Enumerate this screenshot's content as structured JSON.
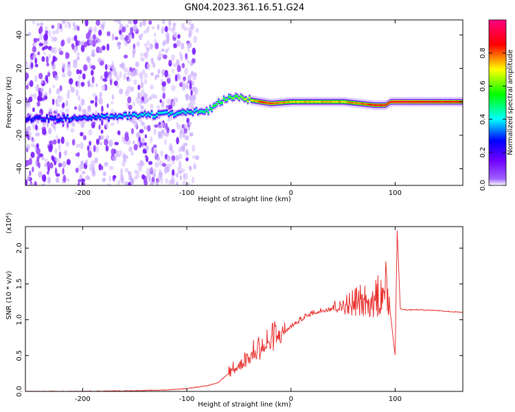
{
  "title": "GN04.2023.361.16.51.G24",
  "chart_data": [
    {
      "type": "heatmap",
      "xlabel": "Height of straight line (km)",
      "ylabel": "Frequency (Hz)",
      "xlim": [
        -255,
        165
      ],
      "ylim": [
        -50,
        49
      ],
      "xticks": [
        -200,
        -100,
        0,
        100
      ],
      "yticks": [
        -40,
        -20,
        0,
        20,
        40
      ],
      "colorbar": {
        "label": "Normalized spectral amplitude",
        "range": [
          0,
          1
        ],
        "ticks": [
          0.0,
          0.2,
          0.4,
          0.6,
          0.8
        ],
        "tick_labels": [
          "0.0",
          "0.2",
          "0.4",
          "0.6",
          "0.8"
        ],
        "colors": [
          "#ffffff",
          "#8000ff",
          "#0000ff",
          "#00ffff",
          "#00ff00",
          "#ffff00",
          "#ff0000",
          "#ff0080"
        ]
      },
      "ridge": {
        "x": [
          -255,
          -200,
          -170,
          -140,
          -110,
          -95,
          -80,
          -70,
          -60,
          -50,
          -40,
          -30,
          -20,
          0,
          50,
          80,
          90,
          95,
          165
        ],
        "y": [
          -10,
          -10,
          -9,
          -8,
          -7,
          -6,
          -5,
          0,
          2,
          3,
          1,
          0,
          -1,
          0,
          0,
          -2,
          -2,
          0,
          0
        ],
        "amplitude": [
          0.3,
          0.35,
          0.4,
          0.45,
          0.45,
          0.45,
          0.55,
          0.6,
          0.6,
          0.65,
          0.7,
          0.85,
          0.85,
          0.75,
          0.75,
          0.85,
          0.85,
          0.9,
          0.85
        ]
      },
      "noise_region_x": [
        -255,
        -90
      ]
    },
    {
      "type": "line",
      "xlabel": "Height of straight line (km)",
      "ylabel": "SNR (10 * v/v)",
      "scale_label": "(x10⁴)",
      "xlim": [
        -255,
        165
      ],
      "ylim": [
        0,
        2.3
      ],
      "xticks": [
        -200,
        -100,
        0,
        100
      ],
      "yticks": [
        0.0,
        0.5,
        1.0,
        1.5,
        2.0
      ],
      "ytick_labels": [
        "0.0",
        "0.5",
        "1.0",
        "1.5",
        "2.0"
      ],
      "series": [
        {
          "color": "#e8302e",
          "x": [
            -255,
            -200,
            -150,
            -120,
            -100,
            -90,
            -80,
            -70,
            -60,
            -50,
            -40,
            -30,
            -20,
            -10,
            0,
            10,
            20,
            30,
            40,
            50,
            60,
            70,
            80,
            85,
            90,
            95,
            100,
            102,
            105,
            110,
            120,
            140,
            165
          ],
          "y": [
            0.0,
            0.0,
            0.01,
            0.02,
            0.04,
            0.06,
            0.08,
            0.12,
            0.25,
            0.35,
            0.45,
            0.55,
            0.65,
            0.78,
            0.9,
            1.0,
            1.08,
            1.12,
            1.15,
            1.16,
            1.17,
            1.18,
            1.2,
            1.25,
            1.3,
            1.15,
            0.5,
            2.25,
            1.15,
            1.14,
            1.14,
            1.13,
            1.1
          ]
        }
      ]
    }
  ]
}
